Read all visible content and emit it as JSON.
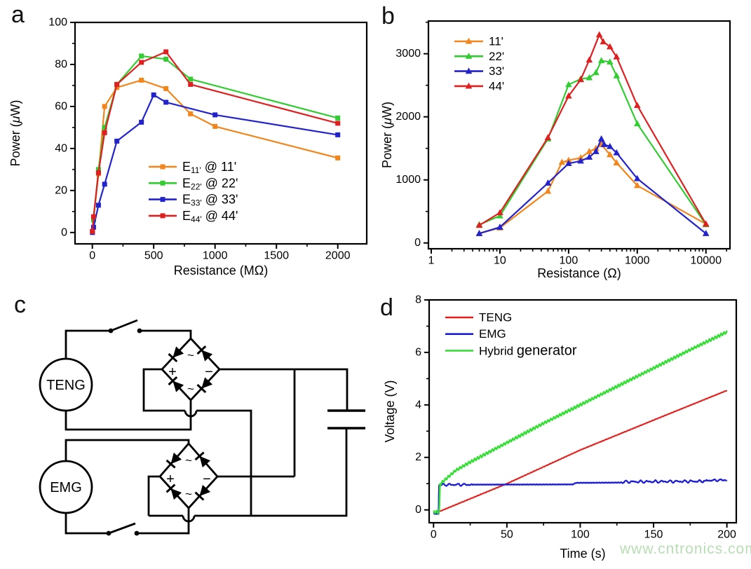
{
  "page": {
    "background": "#ffffff",
    "watermark": {
      "text": "www.cntronics.com",
      "color": "#b8dcb4"
    }
  },
  "panels": {
    "a": {
      "letter": "a"
    },
    "b": {
      "letter": "b"
    },
    "c": {
      "letter": "c",
      "components": {
        "generator_top": "TENG",
        "generator_bottom": "EMG",
        "bridge_plus": "+",
        "bridge_minus": "−",
        "bridge_ac": "~"
      }
    },
    "d": {
      "letter": "d"
    }
  },
  "chart_data": [
    {
      "id": "a",
      "type": "line",
      "x_scale": "linear",
      "xlabel": "Resistance (MΩ)",
      "ylabel": "Power (μW)",
      "xlim": [
        -141,
        2236
      ],
      "ylim": [
        -5.4,
        100
      ],
      "xticks": [
        0,
        500,
        1000,
        1500,
        2000
      ],
      "xticklabels": [
        "0",
        "500",
        "1000",
        "1500",
        "2000"
      ],
      "yticks": [
        0,
        20,
        40,
        60,
        80,
        100
      ],
      "x_minor_step": 250,
      "y_minor_step": 10,
      "grid": false,
      "legend_position": "inside-center-bottom",
      "series": [
        {
          "name": "E11' @ 11'",
          "legend_parts": [
            {
              "text": "E"
            },
            {
              "text": "11'",
              "style": "sub"
            },
            {
              "text": " @ 11'"
            }
          ],
          "color": "#F2861D",
          "marker": "square",
          "x": [
            1,
            10,
            50,
            100,
            200,
            400,
            600,
            800,
            1000,
            2000
          ],
          "y": [
            0.5,
            7,
            28,
            60,
            69,
            72.5,
            68.5,
            56.5,
            50.5,
            35.5
          ]
        },
        {
          "name": "E22' @ 22'",
          "legend_parts": [
            {
              "text": "E"
            },
            {
              "text": "22'",
              "style": "sub"
            },
            {
              "text": " @ 22'"
            }
          ],
          "color": "#33CC33",
          "marker": "square",
          "x": [
            1,
            10,
            50,
            100,
            200,
            400,
            600,
            800,
            2000
          ],
          "y": [
            0.5,
            6,
            30,
            50,
            70.5,
            84,
            82.5,
            73,
            54.5
          ]
        },
        {
          "name": "E33' @ 33'",
          "legend_parts": [
            {
              "text": "E"
            },
            {
              "text": "33'",
              "style": "sub"
            },
            {
              "text": " @ 33'"
            }
          ],
          "color": "#2323CB",
          "marker": "square",
          "x": [
            1,
            10,
            50,
            100,
            200,
            400,
            500,
            600,
            1000,
            2000
          ],
          "y": [
            0,
            2.5,
            13,
            23,
            43.5,
            52.5,
            65.5,
            62,
            56,
            46.5
          ]
        },
        {
          "name": "E44' @ 44'",
          "legend_parts": [
            {
              "text": "E"
            },
            {
              "text": "44'",
              "style": "sub"
            },
            {
              "text": " @ 44'"
            }
          ],
          "color": "#DF2020",
          "marker": "square",
          "x": [
            1,
            10,
            50,
            100,
            200,
            400,
            600,
            800,
            2000
          ],
          "y": [
            0.5,
            7.5,
            28.5,
            47.5,
            70.5,
            81,
            86,
            70.5,
            52
          ]
        }
      ]
    },
    {
      "id": "b",
      "type": "line",
      "x_scale": "log",
      "xlabel": "Resistance (Ω)",
      "ylabel": "Power (μW)",
      "xlim": [
        0.91,
        22387
      ],
      "ylim": [
        -92,
        3519
      ],
      "xticks": [
        1,
        10,
        100,
        1000,
        10000
      ],
      "xticklabels": [
        "1",
        "10",
        "100",
        "1000",
        "10000"
      ],
      "yticks": [
        0,
        1000,
        2000,
        3000
      ],
      "y_minor_step": 500,
      "grid": false,
      "legend_position": "inside-top-left",
      "series": [
        {
          "name": "11'",
          "color": "#F2861D",
          "marker": "triangle",
          "x": [
            5,
            10,
            50,
            80,
            100,
            150,
            200,
            250,
            300,
            400,
            500,
            1000,
            10000
          ],
          "y": [
            150,
            240,
            820,
            1280,
            1310,
            1350,
            1450,
            1500,
            1560,
            1400,
            1270,
            910,
            300
          ]
        },
        {
          "name": "22'",
          "color": "#33CC33",
          "marker": "triangle",
          "x": [
            5,
            10,
            50,
            100,
            150,
            200,
            250,
            300,
            400,
            500,
            1000,
            10000
          ],
          "y": [
            290,
            430,
            1650,
            2510,
            2600,
            2620,
            2700,
            2890,
            2870,
            2650,
            1890,
            290
          ]
        },
        {
          "name": "33'",
          "color": "#2323CB",
          "marker": "triangle",
          "x": [
            5,
            10,
            50,
            100,
            150,
            200,
            250,
            300,
            330,
            400,
            500,
            1000,
            10000
          ],
          "y": [
            150,
            250,
            950,
            1260,
            1300,
            1360,
            1450,
            1650,
            1560,
            1530,
            1430,
            1020,
            150
          ]
        },
        {
          "name": "44'",
          "color": "#DF2020",
          "marker": "triangle",
          "x": [
            5,
            10,
            50,
            100,
            150,
            200,
            280,
            320,
            400,
            500,
            1000,
            10000
          ],
          "y": [
            280,
            480,
            1670,
            2330,
            2590,
            2900,
            3300,
            3190,
            3110,
            2950,
            2180,
            300
          ]
        }
      ]
    },
    {
      "id": "d",
      "type": "line",
      "x_scale": "linear",
      "xlabel": "Time (s)",
      "ylabel": "Voltage (V)",
      "xlim": [
        -3,
        206.4
      ],
      "ylim": [
        -0.49,
        8
      ],
      "xticks": [
        0,
        50,
        100,
        150,
        200
      ],
      "xticklabels": [
        "0",
        "50",
        "100",
        "150",
        "200"
      ],
      "yticks": [
        0,
        2,
        4,
        6,
        8
      ],
      "x_minor_step": 25,
      "y_minor_step": 1,
      "grid": false,
      "legend_position": "inside-top-left",
      "series": [
        {
          "name": "TENG",
          "color": "#E41E1A",
          "marker": "none",
          "width": 1.9,
          "keypoints": [
            [
              0,
              -0.12
            ],
            [
              3.2,
              -0.12
            ],
            [
              4,
              -0.06
            ],
            [
              50,
              1.0
            ],
            [
              100,
              2.28
            ],
            [
              150,
              3.42
            ],
            [
              200,
              4.55
            ]
          ],
          "noise": 0.015
        },
        {
          "name": "EMG",
          "color": "#1C1CD6",
          "marker": "none",
          "width": 2.2,
          "keypoints": [
            [
              0,
              -0.15
            ],
            [
              3.4,
              -0.15
            ],
            [
              3.7,
              0.95
            ],
            [
              10,
              0.96
            ],
            [
              95,
              0.97
            ],
            [
              97,
              1.03
            ],
            [
              127,
              1.04
            ],
            [
              130,
              1.07
            ],
            [
              183,
              1.09
            ],
            [
              186,
              1.12
            ],
            [
              200,
              1.14
            ]
          ],
          "noise": 0.012,
          "noise_segments": [
            [
              4,
              26,
              0.045
            ],
            [
              128,
              184,
              0.05
            ],
            [
              186,
              200,
              0.04
            ]
          ]
        },
        {
          "name": "Hybrid generator",
          "legend_parts": [
            {
              "text": "Hybrid ",
              "size": 17
            },
            {
              "text": "generator",
              "size": 20
            }
          ],
          "color": "#36DF36",
          "marker": "none",
          "width": 2.4,
          "keypoints": [
            [
              0,
              -0.08
            ],
            [
              3.9,
              -0.08
            ],
            [
              4.4,
              0.98
            ],
            [
              15,
              1.5
            ],
            [
              25,
              1.82
            ],
            [
              50,
              2.56
            ],
            [
              75,
              3.3
            ],
            [
              100,
              4.0
            ],
            [
              125,
              4.7
            ],
            [
              150,
              5.4
            ],
            [
              175,
              6.1
            ],
            [
              200,
              6.78
            ]
          ],
          "noise": 0.01,
          "stair": {
            "amplitude": 0.05,
            "period": 2
          }
        }
      ]
    }
  ]
}
